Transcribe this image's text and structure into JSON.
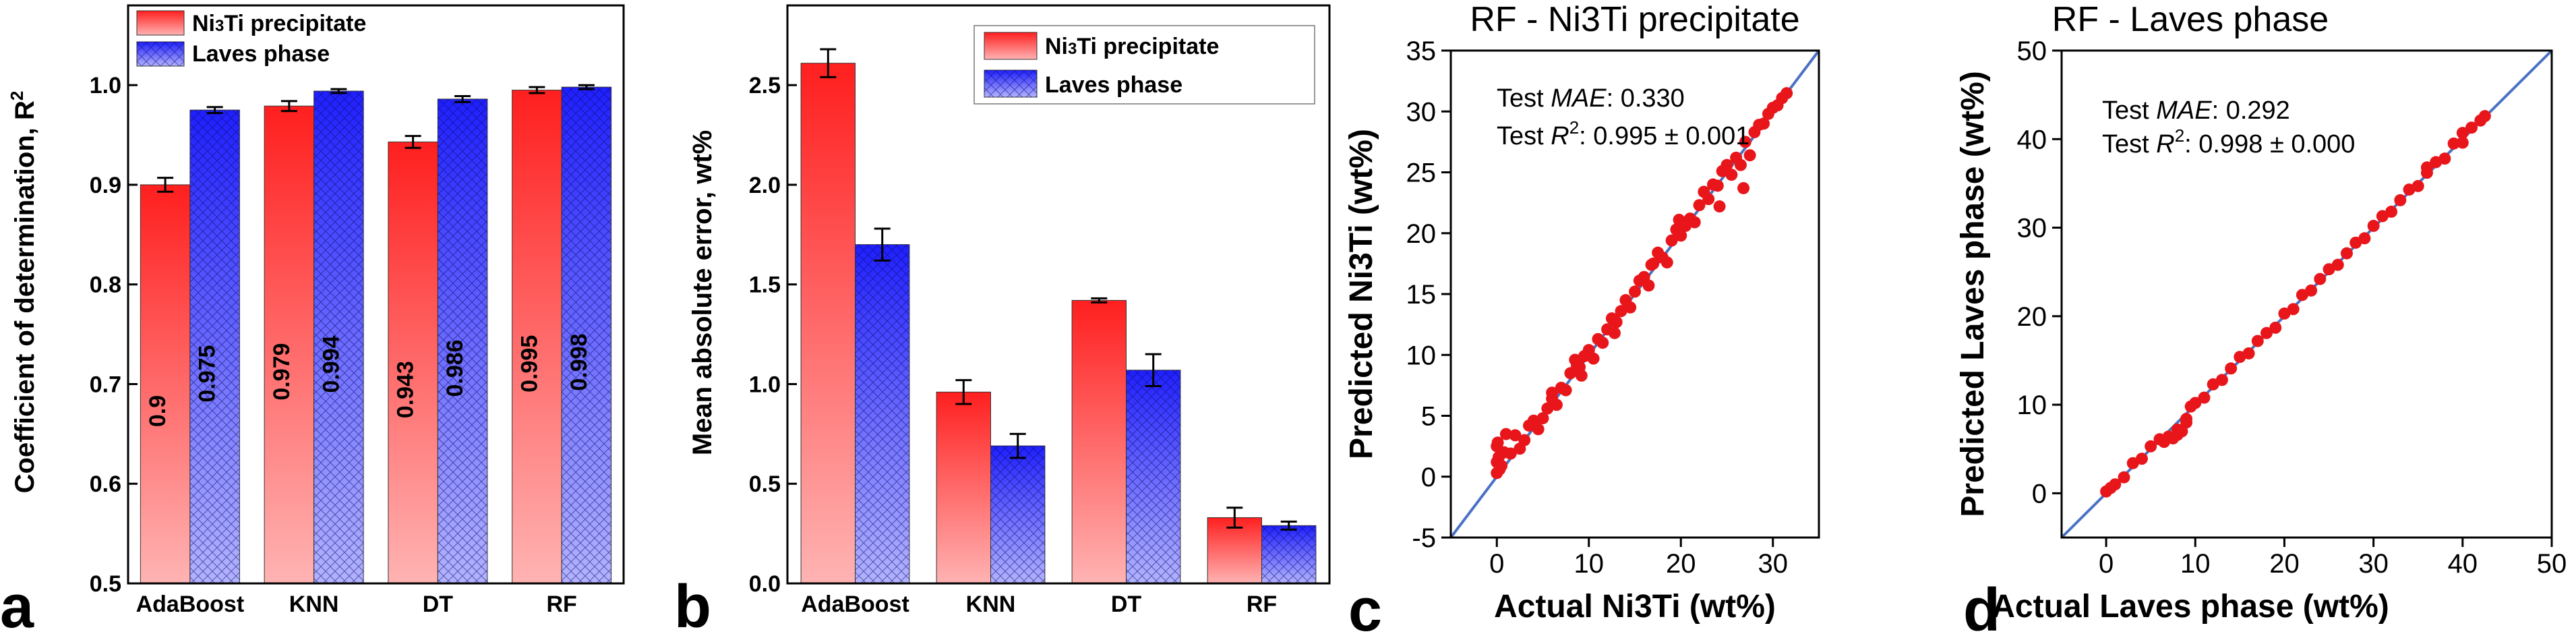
{
  "colors": {
    "red": "#ff2a2a",
    "blue": "#2a2aff",
    "fit_line": "#4a72c4",
    "scatter": "#e8161b"
  },
  "panels": {
    "a": {
      "letter": "a"
    },
    "b": {
      "letter": "b"
    },
    "c": {
      "letter": "c"
    },
    "d": {
      "letter": "d"
    }
  },
  "chart_data": [
    {
      "type": "bar",
      "panel": "a",
      "categories": [
        "AdaBoost",
        "KNN",
        "DT",
        "RF"
      ],
      "ylabel": "Coefficient of determination, R²",
      "ylim": [
        0.5,
        1.08
      ],
      "yticks": [
        0.5,
        0.6,
        0.7,
        0.8,
        0.9,
        1.0
      ],
      "legend_position": "top-left",
      "series": [
        {
          "name": "Ni₃Ti precipitate",
          "values": [
            0.9,
            0.979,
            0.943,
            0.995
          ],
          "errors": [
            0.007,
            0.005,
            0.006,
            0.003
          ],
          "labels": [
            "0.9",
            "0.979",
            "0.943",
            "0.995"
          ]
        },
        {
          "name": "Laves phase",
          "values": [
            0.975,
            0.994,
            0.986,
            0.998
          ],
          "errors": [
            0.003,
            0.002,
            0.003,
            0.002
          ],
          "labels": [
            "0.975",
            "0.994",
            "0.986",
            "0.998"
          ]
        }
      ]
    },
    {
      "type": "bar",
      "panel": "b",
      "categories": [
        "AdaBoost",
        "KNN",
        "DT",
        "RF"
      ],
      "ylabel": "Mean absolute error, wt%",
      "ylim": [
        0.0,
        2.9
      ],
      "yticks": [
        0.0,
        0.5,
        1.0,
        1.5,
        2.0,
        2.5
      ],
      "legend_position": "top-right",
      "series": [
        {
          "name": "Ni₃Ti precipitate",
          "values": [
            2.61,
            0.96,
            1.42,
            0.33
          ],
          "errors": [
            0.07,
            0.06,
            0.01,
            0.05
          ]
        },
        {
          "name": "Laves phase",
          "values": [
            1.7,
            0.69,
            1.07,
            0.29
          ],
          "errors": [
            0.08,
            0.06,
            0.08,
            0.02
          ]
        }
      ]
    },
    {
      "type": "scatter",
      "panel": "c",
      "title": "RF - Ni3Ti precipitate",
      "xlabel": "Actual Ni3Ti (wt%)",
      "ylabel": "Predicted Ni3Ti (wt%)",
      "xlim": [
        -5,
        35
      ],
      "ylim": [
        -5,
        35
      ],
      "xticks": [
        0,
        10,
        20,
        30
      ],
      "yticks": [
        -5,
        0,
        5,
        10,
        15,
        20,
        25,
        30,
        35
      ],
      "annotation": {
        "metric1_prefix": "Test ",
        "metric1_name": "MAE",
        "metric1_value": ": 0.330",
        "metric2_prefix": "Test ",
        "metric2_name": "R",
        "metric2_sup": "2",
        "metric2_value": ": 0.995 ± 0.001"
      },
      "points": [
        [
          0,
          0.3
        ],
        [
          0,
          1.2
        ],
        [
          0,
          2.5
        ],
        [
          0.1,
          2.8
        ],
        [
          0.2,
          1.6
        ],
        [
          0.3,
          0.6
        ],
        [
          0.5,
          0.9
        ],
        [
          0.8,
          2.0
        ],
        [
          1.0,
          3.5
        ],
        [
          1.5,
          1.9
        ],
        [
          2.0,
          3.4
        ],
        [
          2.5,
          2.3
        ],
        [
          3.0,
          3.0
        ],
        [
          3.5,
          4.2
        ],
        [
          4,
          4.6
        ],
        [
          4.5,
          3.9
        ],
        [
          5,
          4.8
        ],
        [
          5.5,
          5.6
        ],
        [
          6,
          6.4
        ],
        [
          6.5,
          5.9
        ],
        [
          7,
          7.3
        ],
        [
          7.5,
          7.1
        ],
        [
          8,
          8.5
        ],
        [
          8.5,
          9.6
        ],
        [
          9,
          9.0
        ],
        [
          9.5,
          9.9
        ],
        [
          10,
          10.4
        ],
        [
          10.5,
          9.7
        ],
        [
          11,
          11.3
        ],
        [
          11.5,
          11.0
        ],
        [
          12,
          12.1
        ],
        [
          12.5,
          13.0
        ],
        [
          13,
          12.7
        ],
        [
          13.5,
          13.6
        ],
        [
          14,
          14.5
        ],
        [
          14.5,
          13.9
        ],
        [
          15,
          15.2
        ],
        [
          15.5,
          16.1
        ],
        [
          16,
          16.4
        ],
        [
          16.5,
          15.7
        ],
        [
          17,
          17.5
        ],
        [
          17.5,
          18.4
        ],
        [
          18,
          18.0
        ],
        [
          18.5,
          17.6
        ],
        [
          19,
          19.4
        ],
        [
          19.5,
          20.3
        ],
        [
          20,
          19.8
        ],
        [
          20.5,
          20.6
        ],
        [
          21,
          21.2
        ],
        [
          21.5,
          20.9
        ],
        [
          22,
          22.3
        ],
        [
          22.5,
          23.4
        ],
        [
          23,
          22.8
        ],
        [
          23.5,
          24.0
        ],
        [
          24,
          23.9
        ],
        [
          24.5,
          25.1
        ],
        [
          25,
          25.6
        ],
        [
          25.5,
          24.8
        ],
        [
          26,
          26.2
        ],
        [
          26.5,
          25.6
        ],
        [
          27,
          27.5
        ],
        [
          27.5,
          26.4
        ],
        [
          28,
          28.3
        ],
        [
          28.5,
          28.9
        ],
        [
          29,
          29.0
        ],
        [
          29.5,
          29.8
        ],
        [
          30,
          30.3
        ],
        [
          30.5,
          30.5
        ],
        [
          31,
          31.1
        ],
        [
          31.5,
          31.5
        ],
        [
          9.2,
          8.3
        ],
        [
          8.7,
          9.1
        ],
        [
          16.8,
          17.4
        ],
        [
          24.2,
          22.2
        ],
        [
          26.8,
          23.7
        ],
        [
          6.0,
          6.9
        ],
        [
          12.8,
          11.8
        ],
        [
          19.8,
          21.1
        ]
      ]
    },
    {
      "type": "scatter",
      "panel": "d",
      "title": "RF - Laves phase",
      "xlabel": "Actual Laves phase (wt%)",
      "ylabel": "Predicted Laves phase (wt%)",
      "xlim": [
        -5,
        50
      ],
      "ylim": [
        -5,
        50
      ],
      "xticks": [
        0,
        10,
        20,
        30,
        40,
        50
      ],
      "yticks": [
        0,
        10,
        20,
        30,
        40,
        50
      ],
      "annotation": {
        "metric1_prefix": "Test ",
        "metric1_name": "MAE",
        "metric1_value": ": 0.292",
        "metric2_prefix": "Test ",
        "metric2_name": "R",
        "metric2_sup": "2",
        "metric2_value": ": 0.998 ± 0.000"
      },
      "points": [
        [
          0,
          0.2
        ],
        [
          0.5,
          0.6
        ],
        [
          1,
          1.0
        ],
        [
          2,
          1.8
        ],
        [
          3,
          3.4
        ],
        [
          4,
          3.9
        ],
        [
          5,
          5.3
        ],
        [
          6,
          6.1
        ],
        [
          6.5,
          5.8
        ],
        [
          7,
          6.4
        ],
        [
          7.5,
          6.2
        ],
        [
          8,
          6.6
        ],
        [
          8.5,
          7.0
        ],
        [
          9,
          8.4
        ],
        [
          9.5,
          9.8
        ],
        [
          10,
          10.2
        ],
        [
          11,
          10.8
        ],
        [
          12,
          12.3
        ],
        [
          13,
          12.8
        ],
        [
          14,
          14.1
        ],
        [
          15,
          15.4
        ],
        [
          16,
          15.8
        ],
        [
          17,
          17.2
        ],
        [
          18,
          18.1
        ],
        [
          19,
          18.7
        ],
        [
          20,
          20.3
        ],
        [
          21,
          20.8
        ],
        [
          22,
          22.4
        ],
        [
          23,
          22.9
        ],
        [
          24,
          24.2
        ],
        [
          25,
          25.3
        ],
        [
          26,
          25.8
        ],
        [
          27,
          27.1
        ],
        [
          28,
          28.3
        ],
        [
          29,
          28.8
        ],
        [
          30,
          30.2
        ],
        [
          31,
          31.3
        ],
        [
          32,
          31.8
        ],
        [
          33,
          33.1
        ],
        [
          34,
          34.3
        ],
        [
          35,
          34.7
        ],
        [
          36,
          36.2
        ],
        [
          37,
          37.4
        ],
        [
          38,
          37.8
        ],
        [
          39,
          39.5
        ],
        [
          40,
          39.6
        ],
        [
          41,
          41.3
        ],
        [
          42,
          42.1
        ],
        [
          42.5,
          42.6
        ],
        [
          8,
          7.2
        ],
        [
          9,
          8.0
        ],
        [
          36,
          36.8
        ],
        [
          40,
          40.7
        ]
      ]
    }
  ]
}
